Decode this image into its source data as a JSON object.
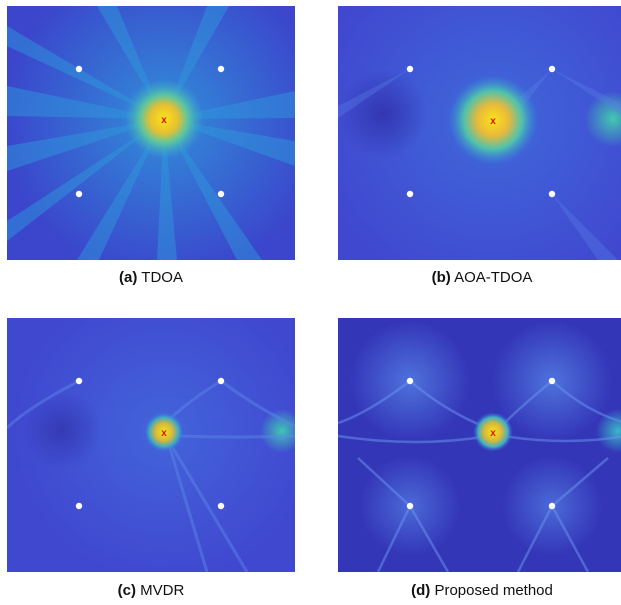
{
  "panels": [
    {
      "id": "a",
      "letter": "(a)",
      "title": "TDOA",
      "colormap": "parula",
      "sensors": 4,
      "source_marker": "x"
    },
    {
      "id": "b",
      "letter": "(b)",
      "title": "AOA-TDOA",
      "colormap": "parula",
      "sensors": 4,
      "source_marker": "x"
    },
    {
      "id": "c",
      "letter": "(c)",
      "title": "MVDR",
      "colormap": "parula",
      "sensors": 4,
      "source_marker": "x"
    },
    {
      "id": "d",
      "letter": "(d)",
      "title": "Proposed method",
      "colormap": "parula",
      "sensors": 4,
      "source_marker": "x"
    }
  ],
  "colors": {
    "low": "#3a3ec8",
    "mid": "#2fa8d8",
    "peak": "#f8e01a",
    "sensor": "#ffffff",
    "source": "#e01010"
  }
}
